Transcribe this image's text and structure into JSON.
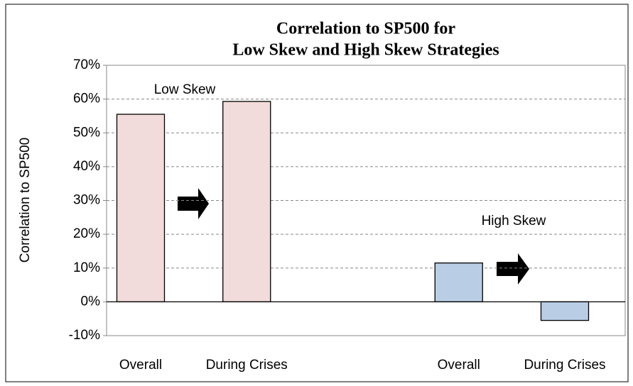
{
  "chart_data": {
    "type": "bar",
    "title": [
      "Correlation to SP500 for",
      "Low Skew and High Skew Strategies"
    ],
    "y_axis_label": "Correlation to SP500",
    "categories": [
      "Overall",
      "During Crises",
      null,
      "Overall",
      "During Crises"
    ],
    "values": [
      55.5,
      59.3,
      null,
      11.5,
      -5.5
    ],
    "colors": [
      "#f2dcdb",
      "#f2dcdb",
      null,
      "#b9cde5",
      "#b9cde5"
    ],
    "annotations": [
      "Low Skew",
      "High Skew"
    ],
    "ylim": [
      -10,
      70
    ],
    "yticks": [
      {
        "value": -10,
        "label": "-10%"
      },
      {
        "value": 0,
        "label": "0%"
      },
      {
        "value": 10,
        "label": "10%"
      },
      {
        "value": 20,
        "label": "20%"
      },
      {
        "value": 30,
        "label": "30%"
      },
      {
        "value": 40,
        "label": "40%"
      },
      {
        "value": 50,
        "label": "50%"
      },
      {
        "value": 60,
        "label": "60%"
      },
      {
        "value": 70,
        "label": "70%"
      }
    ],
    "grid": true
  }
}
